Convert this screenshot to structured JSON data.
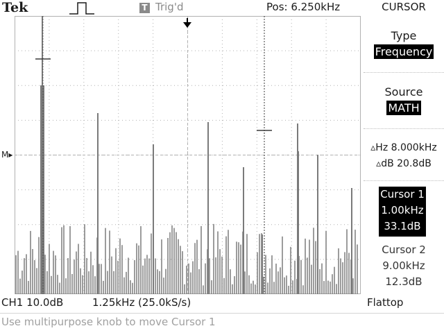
{
  "header": {
    "brand": "Tek",
    "trigger_mode_glyph": "T",
    "trigger_status": "Trig'd",
    "position": "Pos: 6.250kHz",
    "menu_title": "CURSOR"
  },
  "menu": {
    "type_label": "Type",
    "type_value": "Frequency",
    "source_label": "Source",
    "source_value": "MATH"
  },
  "readouts": {
    "delta_hz": "▵Hz 8.000kHz",
    "delta_db": "▵dB 20.8dB",
    "cursor1": {
      "title": "Cursor 1",
      "freq": "1.00kHz",
      "level": "33.1dB"
    },
    "cursor2": {
      "title": "Cursor 2",
      "freq": "9.00kHz",
      "level": "12.3dB"
    },
    "ch1": "CH1 10.0dB",
    "timebase": "1.25kHz (25.0kS/s)",
    "window": "Flattop",
    "hint": "Use multipurpose knob to move Cursor 1",
    "math_marker": "M"
  },
  "colors": {
    "trace": "#7a7a7a",
    "graticule": "#b0b0b0",
    "cursor": "#3a3a3a",
    "highlight": "#000000"
  },
  "icons": {
    "pulse": "pulse-icon",
    "trigger_position": "down-arrow-icon",
    "math_ground": "arrow-right-icon"
  }
}
